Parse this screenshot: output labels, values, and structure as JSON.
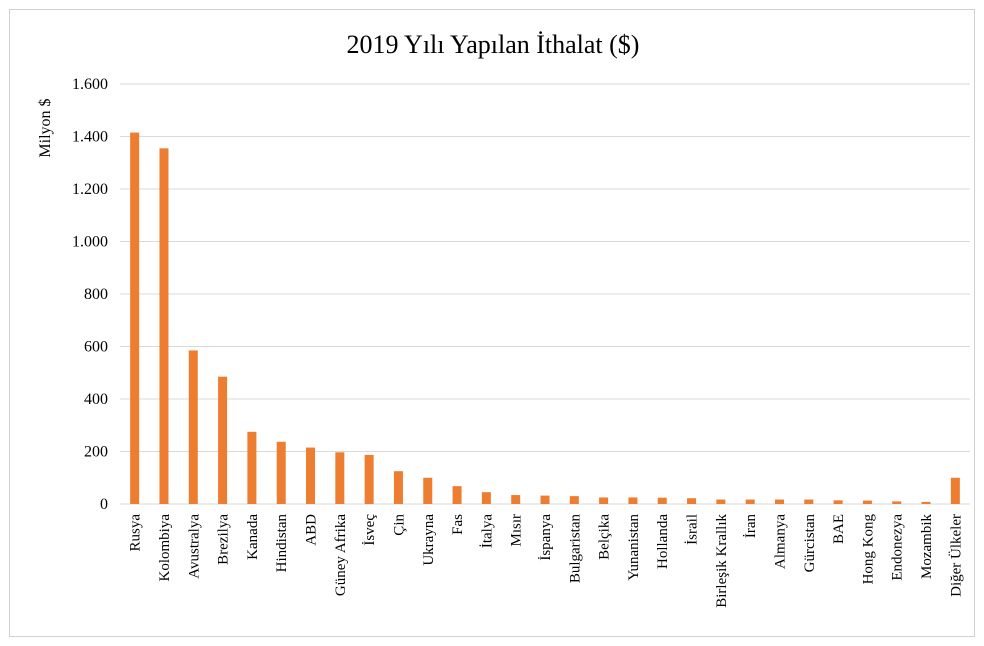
{
  "chart_data": {
    "type": "bar",
    "title": "2019 Yılı Yapılan İthalat ($)",
    "xlabel": "",
    "ylabel": "Milyon $",
    "ylim": [
      0,
      1600
    ],
    "yticks": [
      0,
      200,
      400,
      600,
      800,
      1000,
      1200,
      1400,
      1600
    ],
    "ytick_labels": [
      "0",
      "200",
      "400",
      "600",
      "800",
      "1.000",
      "1.200",
      "1.400",
      "1.600"
    ],
    "grid": true,
    "legend": "none",
    "bar_color": "#ed7d31",
    "categories": [
      "Rusya",
      "Kolombiya",
      "Avustralya",
      "Brezilya",
      "Kanada",
      "Hindistan",
      "ABD",
      "Güney Afrika",
      "İsveç",
      "Çin",
      "Ukrayna",
      "Fas",
      "İtalya",
      "Mısır",
      "İspanya",
      "Bulgaristan",
      "Belçika",
      "Yunanistan",
      "Hollanda",
      "İsrail",
      "Birleşik Krallık",
      "İran",
      "Almanya",
      "Gürcistan",
      "BAE",
      "Hong Kong",
      "Endonezya",
      "Mozambik",
      "Diğer Ülkeler"
    ],
    "values": [
      1415,
      1355,
      585,
      485,
      275,
      237,
      215,
      197,
      187,
      125,
      100,
      68,
      45,
      34,
      32,
      30,
      25,
      25,
      24,
      22,
      17,
      17,
      17,
      17,
      14,
      13,
      10,
      8,
      100
    ]
  }
}
